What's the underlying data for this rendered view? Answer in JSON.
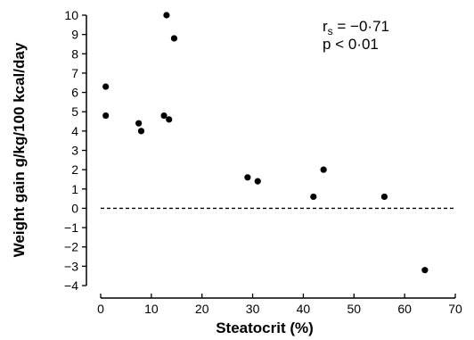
{
  "chart_data": {
    "type": "scatter",
    "title": "",
    "xlabel": "Steatocrit (%)",
    "ylabel": "Weight gain g/kg/100 kcal/day",
    "xlim": [
      0,
      70
    ],
    "ylim": [
      -4,
      10
    ],
    "xticks": [
      0,
      10,
      20,
      30,
      40,
      50,
      60,
      70
    ],
    "yticks": [
      10,
      9,
      8,
      7,
      6,
      5,
      4,
      3,
      2,
      1,
      0,
      -1,
      -2,
      -3,
      -4
    ],
    "xtick_labels": [
      "0",
      "10",
      "20",
      "30",
      "40",
      "50",
      "60",
      "70"
    ],
    "ytick_labels": [
      "10",
      "9",
      "8",
      "7",
      "6",
      "5",
      "4",
      "3",
      "2",
      "1",
      "0",
      "−1",
      "−2",
      "−3",
      "−4"
    ],
    "grid": false,
    "reference_line": {
      "y": 0,
      "style": "dashed"
    },
    "points": [
      {
        "x": 1.0,
        "y": 6.3
      },
      {
        "x": 1.0,
        "y": 4.8
      },
      {
        "x": 7.5,
        "y": 4.4
      },
      {
        "x": 8.0,
        "y": 4.0
      },
      {
        "x": 12.5,
        "y": 4.8
      },
      {
        "x": 13.5,
        "y": 4.6
      },
      {
        "x": 13.0,
        "y": 10.0
      },
      {
        "x": 14.5,
        "y": 8.8
      },
      {
        "x": 29.0,
        "y": 1.6
      },
      {
        "x": 31.0,
        "y": 1.4
      },
      {
        "x": 42.0,
        "y": 0.6
      },
      {
        "x": 44.0,
        "y": 2.0
      },
      {
        "x": 56.0,
        "y": 0.6
      },
      {
        "x": 64.0,
        "y": -3.2
      }
    ],
    "annotations": {
      "rs_label": "r",
      "rs_sub": "s",
      "rs_value": " = −0·71",
      "p_text": "p < 0·01"
    }
  }
}
